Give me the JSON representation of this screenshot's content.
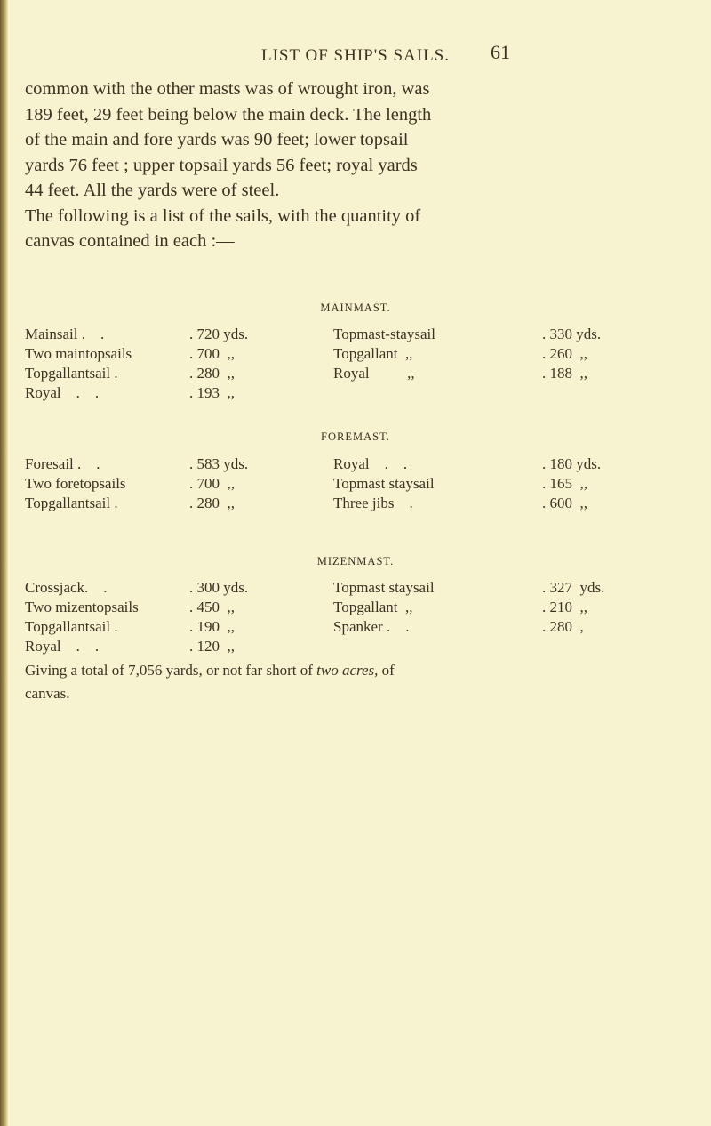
{
  "header": {
    "running_head": "LIST OF SHIP'S SAILS.",
    "page_number": "61"
  },
  "paragraph": [
    "common with the other masts was of wrought iron, was",
    "189 feet, 29 feet being below the main deck. The length",
    "of the main and fore yards was 90 feet; lower topsail",
    "yards 76 feet ; upper topsail yards 56 feet; royal yards",
    "44 feet. All the yards were of steel.",
    "The following is a list of the sails, with the quantity of",
    "canvas contained in each :—"
  ],
  "sections": [
    {
      "title": "MAINMAST.",
      "rows": [
        [
          "Mainsail .    .",
          ". 720 yds.",
          "Topmast-staysail",
          ". 330 yds."
        ],
        [
          "Two maintopsails",
          ". 700  ,,",
          "Topgallant  ,,",
          ". 260  ,,"
        ],
        [
          "Topgallantsail .",
          ". 280  ,,",
          "Royal          ,,",
          ". 188  ,,"
        ],
        [
          "Royal    .    .",
          ". 193  ,,",
          "",
          ""
        ]
      ]
    },
    {
      "title": "FOREMAST.",
      "rows": [
        [
          "Foresail .    .",
          ". 583 yds.",
          "Royal    .    .",
          ". 180 yds."
        ],
        [
          "Two foretopsails",
          ". 700  ,,",
          "Topmast staysail",
          ". 165  ,,"
        ],
        [
          "Topgallantsail .",
          ". 280  ,,",
          "Three jibs    .",
          ". 600  ,,"
        ]
      ]
    },
    {
      "title": "MIZENMAST.",
      "rows": [
        [
          "Crossjack.    .",
          ". 300 yds.",
          "Topmast staysail",
          ". 327  yds."
        ],
        [
          "Two mizentopsails",
          ". 450  ,,",
          "Topgallant  ,,",
          ". 210  ,,"
        ],
        [
          "Topgallantsail .",
          ". 190  ,,",
          "Spanker .    .",
          ". 280  ,"
        ],
        [
          "Royal    .    .",
          ". 120  ,,",
          "",
          ""
        ]
      ]
    }
  ],
  "footer": {
    "line1_a": "Giving a total of 7,056 yards, or not far short of ",
    "line1_italic": "two acres,",
    "line1_b": " of",
    "line2": "canvas."
  }
}
